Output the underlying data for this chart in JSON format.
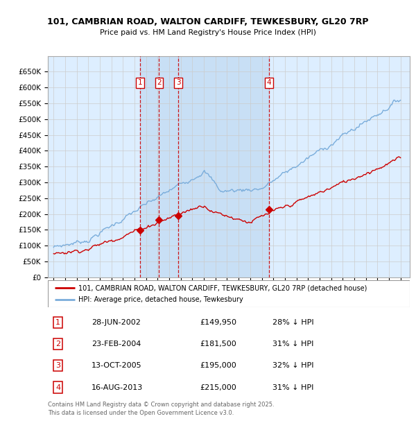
{
  "title1": "101, CAMBRIAN ROAD, WALTON CARDIFF, TEWKESBURY, GL20 7RP",
  "title2": "Price paid vs. HM Land Registry's House Price Index (HPI)",
  "ylim": [
    0,
    700000
  ],
  "yticks": [
    0,
    50000,
    100000,
    150000,
    200000,
    250000,
    300000,
    350000,
    400000,
    450000,
    500000,
    550000,
    600000,
    650000
  ],
  "ytick_labels": [
    "£0",
    "£50K",
    "£100K",
    "£150K",
    "£200K",
    "£250K",
    "£300K",
    "£350K",
    "£400K",
    "£450K",
    "£500K",
    "£550K",
    "£600K",
    "£650K"
  ],
  "hpi_color": "#7aaddb",
  "price_color": "#cc0000",
  "bg_color": "#ddeeff",
  "shade_color": "#c8dff5",
  "grid_color": "#cccccc",
  "transactions": [
    {
      "num": 1,
      "date_x": 2002.49,
      "price": 149950,
      "pct": "28%",
      "label": "28-JUN-2002",
      "price_label": "£149,950"
    },
    {
      "num": 2,
      "date_x": 2004.12,
      "price": 181500,
      "pct": "31%",
      "label": "23-FEB-2004",
      "price_label": "£181,500"
    },
    {
      "num": 3,
      "date_x": 2005.78,
      "price": 195000,
      "pct": "32%",
      "label": "13-OCT-2005",
      "price_label": "£195,000"
    },
    {
      "num": 4,
      "date_x": 2013.62,
      "price": 215000,
      "pct": "31%",
      "label": "16-AUG-2013",
      "price_label": "£215,000"
    }
  ],
  "legend_label_red": "101, CAMBRIAN ROAD, WALTON CARDIFF, TEWKESBURY, GL20 7RP (detached house)",
  "legend_label_blue": "HPI: Average price, detached house, Tewkesbury",
  "footer1": "Contains HM Land Registry data © Crown copyright and database right 2025.",
  "footer2": "This data is licensed under the Open Government Licence v3.0.",
  "xlim_left": 1994.5,
  "xlim_right": 2025.8,
  "marker_y": 615000
}
